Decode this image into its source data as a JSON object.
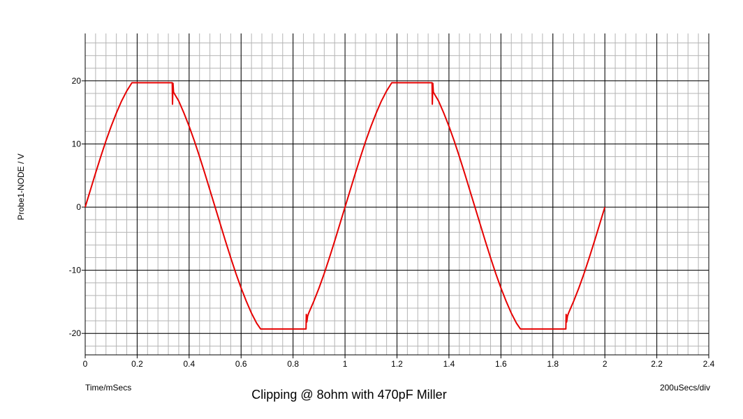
{
  "chart_data": {
    "type": "line",
    "title": "Clipping @ 8ohm with 470pF Miller",
    "y_label": "Probe1-NODE / V",
    "x_label": "Time/mSecs",
    "x_scale_label": "200uSecs/div",
    "xlim": [
      0,
      2.4
    ],
    "xticks": [
      0,
      0.2,
      0.4,
      0.6,
      0.8,
      1,
      1.2,
      1.4,
      1.6,
      1.8,
      2,
      2.2,
      2.4
    ],
    "ylim": [
      -23.4,
      27.5
    ],
    "yticks": [
      -20,
      -10,
      0,
      10,
      20
    ],
    "grid": true,
    "series": [
      {
        "color": "#e60000",
        "x": [
          0,
          0.02,
          0.04,
          0.06,
          0.08,
          0.1,
          0.12,
          0.14,
          0.16,
          0.18,
          0.335,
          0.336,
          0.338,
          0.34,
          0.36,
          0.38,
          0.4,
          0.42,
          0.44,
          0.46,
          0.48,
          0.5,
          0.52,
          0.54,
          0.56,
          0.58,
          0.6,
          0.62,
          0.64,
          0.66,
          0.675,
          0.85,
          0.851,
          0.853,
          0.856,
          0.86,
          0.88,
          0.9,
          0.92,
          0.94,
          0.96,
          0.98,
          1.0,
          1.02,
          1.04,
          1.06,
          1.08,
          1.1,
          1.12,
          1.14,
          1.16,
          1.18,
          1.335,
          1.336,
          1.338,
          1.34,
          1.36,
          1.38,
          1.4,
          1.42,
          1.44,
          1.46,
          1.48,
          1.5,
          1.52,
          1.54,
          1.56,
          1.58,
          1.6,
          1.62,
          1.64,
          1.66,
          1.675,
          1.85,
          1.851,
          1.853,
          1.856,
          1.86,
          1.88,
          1.9,
          1.92,
          1.94,
          1.96,
          1.98,
          2.0
        ],
        "values": [
          0,
          2.7,
          5.4,
          8.0,
          10.5,
          12.8,
          14.9,
          16.8,
          18.4,
          19.7,
          19.7,
          16.3,
          19.6,
          18.2,
          16.8,
          14.9,
          12.8,
          10.5,
          8.0,
          5.4,
          2.7,
          0,
          -2.7,
          -5.4,
          -8.0,
          -10.5,
          -12.8,
          -14.9,
          -16.8,
          -18.4,
          -19.3,
          -19.3,
          -17.0,
          -18.2,
          -17.3,
          -16.8,
          -14.9,
          -12.8,
          -10.5,
          -8.0,
          -5.4,
          -2.7,
          0,
          2.7,
          5.4,
          8.0,
          10.5,
          12.8,
          14.9,
          16.8,
          18.4,
          19.7,
          19.7,
          16.3,
          19.6,
          18.2,
          16.8,
          14.9,
          12.8,
          10.5,
          8.0,
          5.4,
          2.7,
          0,
          -2.7,
          -5.4,
          -8.0,
          -10.5,
          -12.8,
          -14.9,
          -16.8,
          -18.4,
          -19.3,
          -19.3,
          -17.0,
          -18.2,
          -17.3,
          -16.8,
          -14.9,
          -12.8,
          -10.5,
          -8.0,
          -5.4,
          -2.7,
          0
        ]
      }
    ]
  }
}
